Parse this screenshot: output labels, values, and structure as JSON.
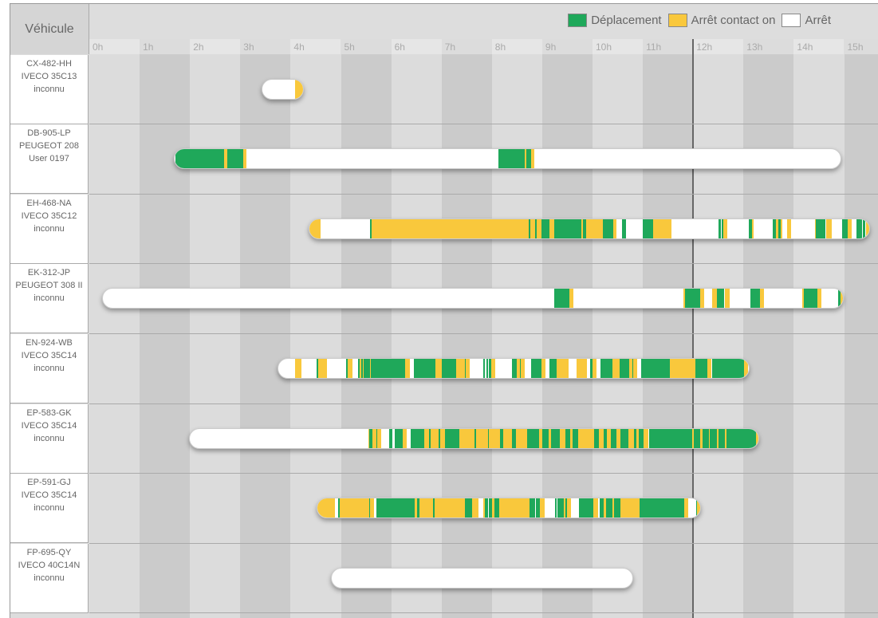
{
  "header": {
    "vehicle_label": "Véhicule"
  },
  "legend": [
    {
      "label": "Déplacement",
      "color": "#1fa85a"
    },
    {
      "label": "Arrêt contact on",
      "color": "#f9c83c"
    },
    {
      "label": "Arrêt",
      "color": "#ffffff"
    }
  ],
  "hours": [
    "0h",
    "1h",
    "2h",
    "3h",
    "4h",
    "5h",
    "6h",
    "7h",
    "8h",
    "9h",
    "10h",
    "11h",
    "12h",
    "13h",
    "14h",
    "15h"
  ],
  "current_time_hour": 12,
  "vehicles": [
    {
      "plate": "CX-482-HH",
      "model": "IVECO 35C13",
      "driver": "inconnu",
      "start": 3.42,
      "end": 4.26,
      "segments": [
        [
          "Y",
          4.07,
          4.26
        ]
      ]
    },
    {
      "plate": "DB-905-LP",
      "model": "PEUGEOT 208",
      "driver": "User 0197",
      "start": 1.68,
      "end": 14.95,
      "segments": [
        [
          "G",
          1.69,
          2.66
        ],
        [
          "Y",
          2.66,
          2.72
        ],
        [
          "G",
          2.72,
          3.04
        ],
        [
          "Y",
          3.04,
          3.11
        ],
        [
          "G",
          8.11,
          8.64
        ],
        [
          "Y",
          8.64,
          8.67
        ],
        [
          "G",
          8.67,
          8.76
        ],
        [
          "Y",
          8.76,
          8.83
        ]
      ]
    },
    {
      "plate": "EH-468-NA",
      "model": "IVECO 35C12",
      "driver": "inconnu",
      "start": 4.36,
      "end": 15.52,
      "segments": [
        [
          "Y",
          4.36,
          4.58
        ],
        [
          "G",
          5.56,
          5.59
        ],
        [
          "Y",
          5.59,
          8.72
        ],
        [
          "G",
          8.72,
          8.75
        ],
        [
          "Y",
          8.75,
          8.84
        ],
        [
          "G",
          8.84,
          8.87
        ],
        [
          "Y",
          8.87,
          8.97
        ],
        [
          "G",
          8.97,
          9.13
        ],
        [
          "Y",
          9.13,
          9.22
        ],
        [
          "G",
          9.22,
          9.76
        ],
        [
          "Y",
          9.76,
          9.79
        ],
        [
          "G",
          9.79,
          9.86
        ],
        [
          "Y",
          9.86,
          10.19
        ],
        [
          "G",
          10.19,
          10.4
        ],
        [
          "Y",
          10.4,
          10.46
        ],
        [
          "G",
          10.57,
          10.65
        ],
        [
          "G",
          10.98,
          11.19
        ],
        [
          "Y",
          11.19,
          11.55
        ],
        [
          "G",
          12.49,
          12.54
        ],
        [
          "G",
          12.55,
          12.58
        ],
        [
          "Y",
          12.58,
          12.66
        ],
        [
          "G",
          13.09,
          13.15
        ],
        [
          "Y",
          13.15,
          13.19
        ],
        [
          "G",
          13.57,
          13.63
        ],
        [
          "Y",
          13.63,
          13.68
        ],
        [
          "G",
          13.68,
          13.72
        ],
        [
          "Y",
          13.72,
          13.76
        ],
        [
          "Y",
          13.85,
          13.93
        ],
        [
          "Y",
          14.41,
          14.42
        ],
        [
          "G",
          14.42,
          14.61
        ],
        [
          "Y",
          14.63,
          14.74
        ],
        [
          "G",
          14.94,
          15.06
        ],
        [
          "Y",
          15.06,
          15.13
        ],
        [
          "G",
          15.23,
          15.34
        ],
        [
          "G",
          15.36,
          15.4
        ],
        [
          "Y",
          15.42,
          15.52
        ]
      ]
    },
    {
      "plate": "EK-312-JP",
      "model": "PEUGEOT 308 II",
      "driver": "inconnu",
      "start": 0.25,
      "end": 14.99,
      "segments": [
        [
          "G",
          9.22,
          9.52
        ],
        [
          "Y",
          9.52,
          9.6
        ],
        [
          "Y",
          11.79,
          11.82
        ],
        [
          "G",
          11.82,
          12.12
        ],
        [
          "Y",
          12.12,
          12.2
        ],
        [
          "Y",
          12.36,
          12.46
        ],
        [
          "G",
          12.46,
          12.6
        ],
        [
          "Y",
          12.61,
          12.71
        ],
        [
          "G",
          13.12,
          13.31
        ],
        [
          "Y",
          13.31,
          13.39
        ],
        [
          "Y",
          14.15,
          14.18
        ],
        [
          "G",
          14.18,
          14.45
        ],
        [
          "Y",
          14.45,
          14.53
        ],
        [
          "G",
          14.87,
          14.91
        ],
        [
          "Y",
          14.91,
          14.99
        ]
      ]
    },
    {
      "plate": "EN-924-WB",
      "model": "IVECO 35C14",
      "driver": "inconnu",
      "start": 3.74,
      "end": 13.12,
      "segments": [
        [
          "Y",
          4.07,
          4.2
        ],
        [
          "G",
          4.5,
          4.53
        ],
        [
          "Y",
          4.53,
          4.71
        ],
        [
          "G",
          5.08,
          5.12
        ],
        [
          "Y",
          5.12,
          5.21
        ],
        [
          "G",
          5.32,
          5.36
        ],
        [
          "Y",
          5.36,
          5.39
        ],
        [
          "G",
          5.39,
          5.42
        ],
        [
          "Y",
          5.42,
          5.44
        ],
        [
          "G",
          5.44,
          5.56
        ],
        [
          "Y",
          5.56,
          5.58
        ],
        [
          "G",
          5.58,
          6.26
        ],
        [
          "Y",
          6.26,
          6.36
        ],
        [
          "G",
          6.43,
          6.86
        ],
        [
          "Y",
          6.86,
          6.99
        ],
        [
          "G",
          6.99,
          7.27
        ],
        [
          "Y",
          7.27,
          7.45
        ],
        [
          "G",
          7.45,
          7.47
        ],
        [
          "Y",
          7.47,
          7.54
        ],
        [
          "G",
          7.81,
          7.84
        ],
        [
          "G",
          7.88,
          7.91
        ],
        [
          "G",
          7.92,
          7.97
        ],
        [
          "Y",
          7.97,
          8.05
        ],
        [
          "G",
          8.38,
          8.48
        ],
        [
          "Y",
          8.48,
          8.54
        ],
        [
          "G",
          8.54,
          8.56
        ],
        [
          "Y",
          8.56,
          8.64
        ],
        [
          "G",
          8.76,
          8.97
        ],
        [
          "Y",
          8.97,
          9.05
        ],
        [
          "G",
          9.13,
          9.27
        ],
        [
          "Y",
          9.27,
          9.51
        ],
        [
          "Y",
          9.67,
          9.87
        ],
        [
          "G",
          9.93,
          9.98
        ],
        [
          "Y",
          9.98,
          10.06
        ],
        [
          "G",
          10.14,
          10.38
        ],
        [
          "Y",
          10.38,
          10.52
        ],
        [
          "G",
          10.52,
          10.71
        ],
        [
          "Y",
          10.71,
          10.78
        ],
        [
          "G",
          10.78,
          10.79
        ],
        [
          "Y",
          10.79,
          10.87
        ],
        [
          "G",
          10.95,
          11.52
        ],
        [
          "Y",
          11.52,
          12.03
        ],
        [
          "G",
          12.03,
          12.27
        ],
        [
          "Y",
          12.27,
          12.35
        ],
        [
          "G",
          12.36,
          13.0
        ],
        [
          "Y",
          13.0,
          13.07
        ]
      ]
    },
    {
      "plate": "EP-583-GK",
      "model": "IVECO 35C14",
      "driver": "inconnu",
      "start": 1.98,
      "end": 13.31,
      "segments": [
        [
          "Y",
          5.53,
          5.55
        ],
        [
          "G",
          5.55,
          5.61
        ],
        [
          "Y",
          5.61,
          5.69
        ],
        [
          "G",
          5.69,
          5.71
        ],
        [
          "Y",
          5.71,
          5.78
        ],
        [
          "G",
          5.94,
          6.01
        ],
        [
          "G",
          6.05,
          6.21
        ],
        [
          "Y",
          6.21,
          6.29
        ],
        [
          "G",
          6.37,
          6.64
        ],
        [
          "Y",
          6.64,
          6.74
        ],
        [
          "G",
          6.74,
          6.77
        ],
        [
          "Y",
          6.77,
          6.93
        ],
        [
          "G",
          6.93,
          6.96
        ],
        [
          "Y",
          6.96,
          7.05
        ],
        [
          "G",
          7.05,
          7.34
        ],
        [
          "Y",
          7.34,
          7.64
        ],
        [
          "G",
          7.64,
          7.67
        ],
        [
          "Y",
          7.67,
          7.91
        ],
        [
          "G",
          7.91,
          7.92
        ],
        [
          "Y",
          7.92,
          8.15
        ],
        [
          "G",
          8.15,
          8.21
        ],
        [
          "Y",
          8.21,
          8.38
        ],
        [
          "G",
          8.38,
          8.46
        ],
        [
          "Y",
          8.46,
          8.68
        ],
        [
          "G",
          8.68,
          8.92
        ],
        [
          "Y",
          8.92,
          8.99
        ],
        [
          "G",
          8.99,
          9.11
        ],
        [
          "Y",
          9.11,
          9.16
        ],
        [
          "G",
          9.16,
          9.33
        ],
        [
          "Y",
          9.33,
          9.45
        ],
        [
          "G",
          9.45,
          9.54
        ],
        [
          "Y",
          9.54,
          9.59
        ],
        [
          "G",
          9.59,
          9.7
        ],
        [
          "Y",
          9.7,
          10.02
        ],
        [
          "G",
          10.02,
          10.11
        ],
        [
          "Y",
          10.11,
          10.21
        ],
        [
          "G",
          10.21,
          10.27
        ],
        [
          "Y",
          10.27,
          10.35
        ],
        [
          "G",
          10.35,
          10.46
        ],
        [
          "Y",
          10.46,
          10.54
        ],
        [
          "G",
          10.54,
          10.7
        ],
        [
          "Y",
          10.7,
          10.81
        ],
        [
          "G",
          10.81,
          10.86
        ],
        [
          "Y",
          10.86,
          10.9
        ],
        [
          "G",
          10.9,
          11.0
        ],
        [
          "Y",
          11.0,
          11.09
        ],
        [
          "G",
          11.11,
          11.97
        ],
        [
          "Y",
          11.97,
          12.0
        ],
        [
          "G",
          12.0,
          12.12
        ],
        [
          "Y",
          12.12,
          12.17
        ],
        [
          "G",
          12.17,
          12.3
        ],
        [
          "Y",
          12.3,
          12.31
        ],
        [
          "G",
          12.31,
          12.46
        ],
        [
          "Y",
          12.46,
          12.49
        ],
        [
          "G",
          12.49,
          12.61
        ],
        [
          "Y",
          12.61,
          12.65
        ],
        [
          "G",
          12.65,
          13.23
        ],
        [
          "Y",
          13.23,
          13.31
        ]
      ]
    },
    {
      "plate": "EP-591-GJ",
      "model": "IVECO 35C14",
      "driver": "inconnu",
      "start": 4.52,
      "end": 12.16,
      "segments": [
        [
          "Y",
          4.52,
          4.87
        ],
        [
          "G",
          4.93,
          4.96
        ],
        [
          "Y",
          4.96,
          5.55
        ],
        [
          "G",
          5.55,
          5.56
        ],
        [
          "Y",
          5.56,
          5.64
        ],
        [
          "G",
          5.69,
          6.45
        ],
        [
          "Y",
          6.45,
          6.5
        ],
        [
          "G",
          6.5,
          6.55
        ],
        [
          "Y",
          6.55,
          6.81
        ],
        [
          "G",
          6.81,
          6.85
        ],
        [
          "Y",
          6.85,
          7.45
        ],
        [
          "G",
          7.45,
          7.59
        ],
        [
          "Y",
          7.59,
          7.72
        ],
        [
          "Y",
          7.81,
          7.84
        ],
        [
          "G",
          7.84,
          7.91
        ],
        [
          "G",
          7.92,
          7.99
        ],
        [
          "Y",
          7.99,
          8.03
        ],
        [
          "G",
          8.03,
          8.13
        ],
        [
          "Y",
          8.13,
          8.73
        ],
        [
          "G",
          8.73,
          8.84
        ],
        [
          "G",
          8.86,
          8.94
        ],
        [
          "Y",
          8.94,
          9.03
        ],
        [
          "G",
          9.24,
          9.27
        ],
        [
          "G",
          9.29,
          9.41
        ],
        [
          "Y",
          9.41,
          9.45
        ],
        [
          "G",
          9.45,
          9.48
        ],
        [
          "Y",
          9.48,
          9.56
        ],
        [
          "G",
          9.71,
          10.0
        ],
        [
          "Y",
          10.0,
          10.09
        ],
        [
          "G",
          10.13,
          10.21
        ],
        [
          "Y",
          10.21,
          10.25
        ],
        [
          "G",
          10.25,
          10.38
        ],
        [
          "Y",
          10.38,
          10.41
        ],
        [
          "G",
          10.41,
          10.54
        ],
        [
          "Y",
          10.54,
          10.92
        ],
        [
          "G",
          10.92,
          11.81
        ],
        [
          "Y",
          11.81,
          11.89
        ],
        [
          "G",
          12.04,
          12.06
        ],
        [
          "Y",
          12.06,
          12.12
        ]
      ]
    },
    {
      "plate": "FP-695-QY",
      "model": "IVECO 40C14N",
      "driver": "inconnu",
      "start": 4.8,
      "end": 10.81,
      "segments": []
    }
  ]
}
